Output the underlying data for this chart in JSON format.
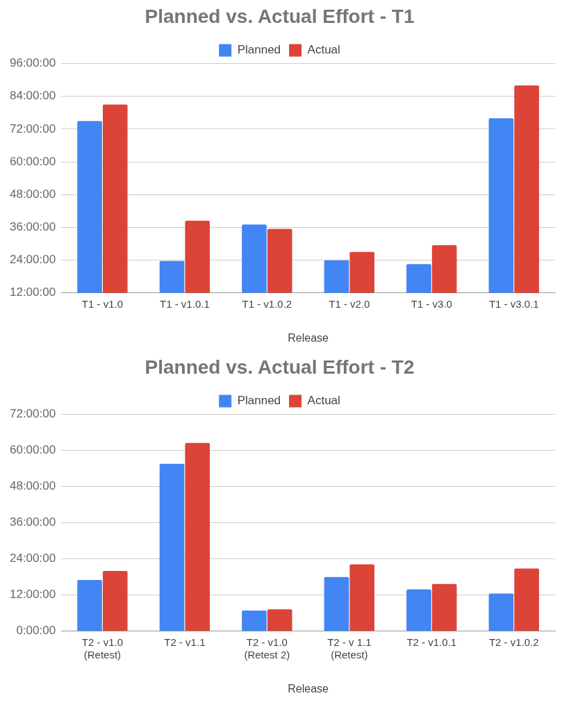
{
  "chart_data": [
    {
      "type": "bar",
      "title": "Planned vs. Actual Effort - T1",
      "xlabel": "Release",
      "categories": [
        "T1 - v1.0",
        "T1 - v1.0.1",
        "T1 - v1.0.2",
        "T1 - v2.0",
        "T1 - v3.0",
        "T1 - v3.0.1"
      ],
      "series": [
        {
          "name": "Planned",
          "color": "#4285f4",
          "values": [
            75,
            23.7,
            37.1,
            24,
            22.6,
            76
          ]
        },
        {
          "name": "Actual",
          "color": "#db4437",
          "values": [
            81,
            38.5,
            35.5,
            27,
            29.5,
            88
          ]
        }
      ],
      "ylim": [
        12,
        96
      ],
      "yticks": [
        {
          "value": 12,
          "label": "12:00:00"
        },
        {
          "value": 24,
          "label": "24:00:00"
        },
        {
          "value": 36,
          "label": "36:00:00"
        },
        {
          "value": 48,
          "label": "48:00:00"
        },
        {
          "value": 60,
          "label": "60:00:00"
        },
        {
          "value": 72,
          "label": "72:00:00"
        },
        {
          "value": 84,
          "label": "84:00:00"
        },
        {
          "value": 96,
          "label": "96:00:00"
        }
      ],
      "grid": "y",
      "legend": "top"
    },
    {
      "type": "bar",
      "title": "Planned vs. Actual Effort - T2",
      "xlabel": "Release",
      "categories": [
        "T2 - v1.0\n(Retest)",
        "T2 - v1.1",
        "T2 - v1.0\n(Retest 2)",
        "T2 - v 1.1\n(Retest)",
        "T2 - v1.0.1",
        "T2 - v1.0.2"
      ],
      "series": [
        {
          "name": "Planned",
          "color": "#4285f4",
          "values": [
            17,
            55.6,
            6.9,
            18,
            13.9,
            12.5
          ]
        },
        {
          "name": "Actual",
          "color": "#db4437",
          "values": [
            20,
            62.5,
            7.3,
            22.2,
            15.7,
            20.8
          ]
        }
      ],
      "ylim": [
        0,
        72
      ],
      "yticks": [
        {
          "value": 0,
          "label": "0:00:00"
        },
        {
          "value": 12,
          "label": "12:00:00"
        },
        {
          "value": 24,
          "label": "24:00:00"
        },
        {
          "value": 36,
          "label": "36:00:00"
        },
        {
          "value": 48,
          "label": "48:00:00"
        },
        {
          "value": 60,
          "label": "60:00:00"
        },
        {
          "value": 72,
          "label": "72:00:00"
        }
      ],
      "grid": "y",
      "legend": "top"
    }
  ]
}
